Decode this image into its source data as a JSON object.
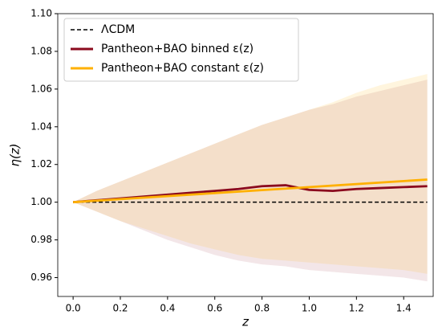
{
  "chart_data": {
    "type": "line",
    "xlabel": "z",
    "ylabel": "η(z)",
    "xlim": [
      -0.065,
      1.525
    ],
    "ylim": [
      0.95,
      1.1
    ],
    "xticks": [
      {
        "value": 0,
        "label": "0.0"
      },
      0.2,
      0.4,
      0.6,
      0.8,
      {
        "value": 1,
        "label": "1.0"
      },
      1.2,
      1.4
    ],
    "yticks": [
      0.96,
      0.98,
      {
        "value": 1,
        "label": "1.00"
      },
      1.02,
      1.04,
      1.06,
      1.08,
      {
        "value": 1.1,
        "label": "1.10"
      }
    ],
    "legend": "upper left",
    "x": [
      0,
      0.1,
      0.2,
      0.3,
      0.4,
      0.5,
      0.6,
      0.7,
      0.8,
      0.9,
      1.0,
      1.1,
      1.2,
      1.3,
      1.4,
      1.5
    ],
    "series": [
      {
        "name": "ΛCDM",
        "color": "#000000",
        "dash": true,
        "values": [
          1,
          1,
          1,
          1,
          1,
          1,
          1,
          1,
          1,
          1,
          1,
          1,
          1,
          1,
          1,
          1
        ]
      },
      {
        "name": "Pantheon+BAO binned ε(z)",
        "color": "#8b0a1e",
        "values": [
          1.0,
          1.001,
          1.002,
          1.003,
          1.004,
          1.005,
          1.006,
          1.007,
          1.0085,
          1.009,
          1.0065,
          1.006,
          1.007,
          1.0075,
          1.008,
          1.0085
        ],
        "upper": [
          1.0,
          1.006,
          1.011,
          1.016,
          1.021,
          1.026,
          1.031,
          1.036,
          1.041,
          1.045,
          1.049,
          1.052,
          1.056,
          1.059,
          1.062,
          1.065
        ],
        "lower": [
          1.0,
          0.995,
          0.99,
          0.985,
          0.98,
          0.976,
          0.972,
          0.969,
          0.967,
          0.966,
          0.964,
          0.963,
          0.962,
          0.961,
          0.96,
          0.958
        ]
      },
      {
        "name": "Pantheon+BAO constant ε(z)",
        "color": "#ffb000",
        "values": [
          1.0,
          1.0008,
          1.0016,
          1.0024,
          1.0032,
          1.004,
          1.0048,
          1.0056,
          1.0064,
          1.0072,
          1.008,
          1.0088,
          1.0096,
          1.0104,
          1.0112,
          1.012
        ],
        "upper": [
          1.0,
          1.006,
          1.011,
          1.016,
          1.021,
          1.026,
          1.031,
          1.036,
          1.041,
          1.045,
          1.049,
          1.053,
          1.058,
          1.062,
          1.065,
          1.068
        ],
        "lower": [
          1.0,
          0.995,
          0.99,
          0.986,
          0.982,
          0.978,
          0.975,
          0.972,
          0.97,
          0.969,
          0.968,
          0.967,
          0.966,
          0.965,
          0.964,
          0.962
        ]
      }
    ]
  }
}
